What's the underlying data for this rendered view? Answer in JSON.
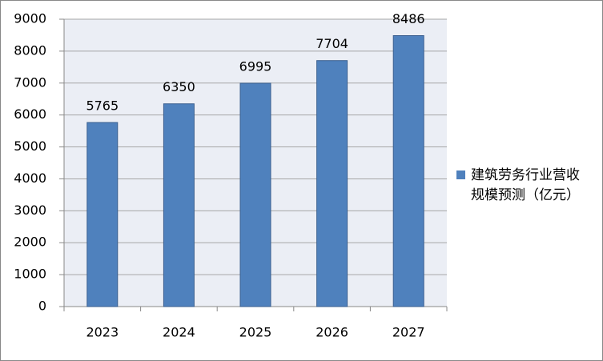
{
  "chart_data": {
    "type": "bar",
    "categories": [
      "2023",
      "2024",
      "2025",
      "2026",
      "2027"
    ],
    "series": [
      {
        "name": "建筑劳务行业营收规模预测（亿元）",
        "color": "#4f81bd",
        "values": [
          5765,
          6350,
          6995,
          7704,
          8486
        ]
      }
    ],
    "ylim": [
      0,
      9000
    ],
    "yticks": [
      0,
      1000,
      2000,
      3000,
      4000,
      5000,
      6000,
      7000,
      8000,
      9000
    ],
    "grid": true,
    "legend": "right"
  }
}
